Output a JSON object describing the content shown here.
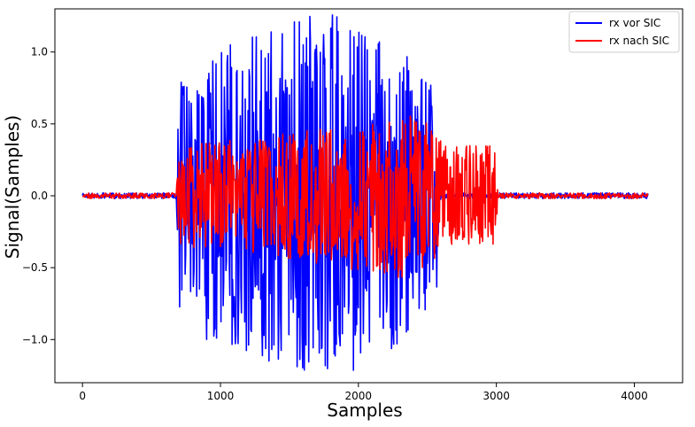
{
  "chart_data": {
    "type": "line",
    "title": "",
    "xlabel": "Samples",
    "ylabel": "Signal(Samples)",
    "xlim": [
      -200,
      4350
    ],
    "ylim": [
      -1.3,
      1.3
    ],
    "x_ticks": [
      0,
      1000,
      2000,
      3000,
      4000
    ],
    "y_ticks": [
      -1.0,
      -0.5,
      0.0,
      0.5,
      1.0
    ],
    "x_tick_labels": [
      "0",
      "1000",
      "2000",
      "3000",
      "4000"
    ],
    "y_tick_labels": [
      "−1.0",
      "−0.5",
      "0.0",
      "0.5",
      "1.0"
    ],
    "grid": false,
    "legend_position": "top-right",
    "series": [
      {
        "name": "rx vor SIC",
        "color": "#0000ff",
        "envelope": [
          [
            0,
            0.02
          ],
          [
            680,
            0.02
          ],
          [
            700,
            0.8
          ],
          [
            900,
            1.0
          ],
          [
            1500,
            1.2
          ],
          [
            1800,
            1.3
          ],
          [
            2200,
            1.1
          ],
          [
            2560,
            0.8
          ],
          [
            2600,
            0.02
          ],
          [
            4100,
            0.02
          ]
        ]
      },
      {
        "name": "rx nach SIC",
        "color": "#ff0000",
        "envelope": [
          [
            0,
            0.02
          ],
          [
            680,
            0.02
          ],
          [
            700,
            0.35
          ],
          [
            1200,
            0.4
          ],
          [
            2200,
            0.55
          ],
          [
            2300,
            0.6
          ],
          [
            2450,
            0.55
          ],
          [
            2560,
            0.45
          ],
          [
            2620,
            0.35
          ],
          [
            3000,
            0.35
          ],
          [
            3010,
            0.02
          ],
          [
            4100,
            0.02
          ]
        ]
      }
    ]
  }
}
